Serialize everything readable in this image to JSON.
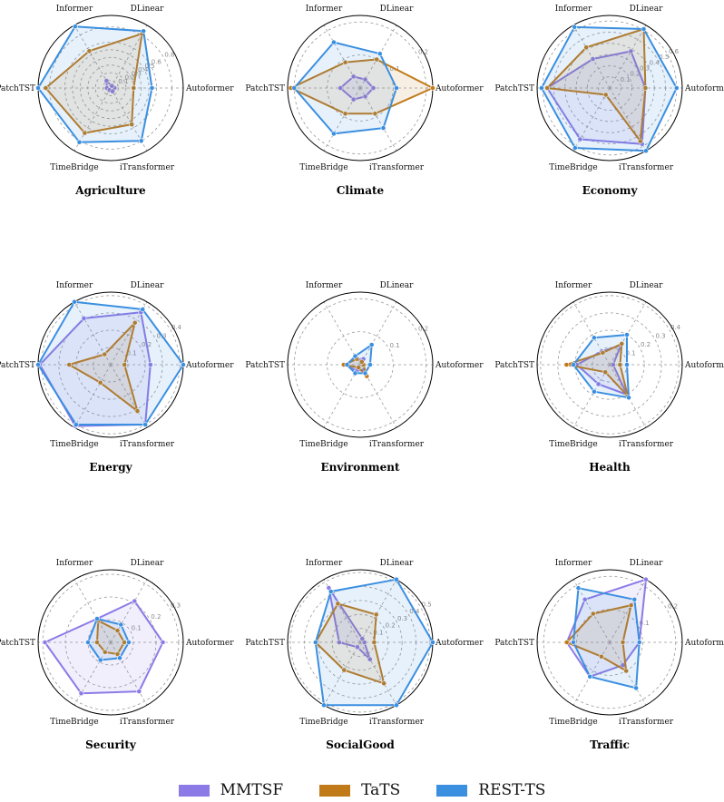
{
  "chart_data": {
    "type": "radar",
    "axes": [
      "Autoformer",
      "DLinear",
      "Informer",
      "PatchTST",
      "TimeBridge",
      "iTransformer"
    ],
    "series": [
      {
        "name": "MMTSF",
        "color": "#8c7ae6"
      },
      {
        "name": "TaTS",
        "color": "#c07a1a"
      },
      {
        "name": "REST-TS",
        "color": "#3b8fe0"
      }
    ],
    "panels": [
      {
        "title": "Agriculture",
        "rmax": 0.95,
        "ticks": [
          0.1,
          0.2,
          0.3,
          0.4,
          0.5,
          0.6,
          0.8
        ],
        "values": [
          [
            0.05,
            0.03,
            0.11,
            0.05,
            0.03,
            0.05
          ],
          [
            0.3,
            0.82,
            0.56,
            0.85,
            0.68,
            0.55
          ],
          [
            0.54,
            0.86,
            0.93,
            0.96,
            0.82,
            0.8
          ]
        ]
      },
      {
        "title": "Climate",
        "rmax": 0.22,
        "ticks": [
          0.1,
          0.2
        ],
        "values": [
          [
            0.04,
            0.03,
            0.04,
            0.06,
            0.04,
            0.03
          ],
          [
            0.22,
            0.1,
            0.09,
            0.21,
            0.09,
            0.09
          ],
          [
            0.11,
            0.12,
            0.16,
            0.2,
            0.16,
            0.14
          ]
        ]
      },
      {
        "title": "Economy",
        "rmax": 0.65,
        "ticks": [
          0.1,
          0.2,
          0.3,
          0.4,
          0.5,
          0.6
        ],
        "values": [
          [
            0.32,
            0.38,
            0.3,
            0.56,
            0.53,
            0.58
          ],
          [
            0.32,
            0.61,
            0.42,
            0.56,
            0.07,
            0.55
          ],
          [
            0.6,
            0.61,
            0.63,
            0.61,
            0.62,
            0.68
          ]
        ]
      },
      {
        "title": "Energy",
        "rmax": 0.42,
        "ticks": [
          0.1,
          0.2,
          0.3,
          0.4
        ],
        "values": [
          [
            0.23,
            0.35,
            0.31,
            0.41,
            0.41,
            0.4
          ],
          [
            0.08,
            0.28,
            0.07,
            0.24,
            0.12,
            0.31
          ],
          [
            0.42,
            0.37,
            0.44,
            0.42,
            0.4,
            0.4
          ]
        ]
      },
      {
        "title": "Environment",
        "rmax": 0.22,
        "ticks": [
          0.1,
          0.2
        ],
        "values": [
          [
            0.01,
            0.02,
            0.02,
            0.05,
            0.02,
            0.02
          ],
          [
            0.01,
            0.01,
            0.02,
            0.05,
            0.01,
            0.04
          ],
          [
            0.03,
            0.07,
            0.03,
            0.04,
            0.03,
            0.03
          ]
        ]
      },
      {
        "title": "Health",
        "rmax": 0.42,
        "ticks": [
          0.1,
          0.2,
          0.3,
          0.4
        ],
        "values": [
          [
            0.02,
            0.13,
            0.09,
            0.19,
            0.13,
            0.2
          ],
          [
            0.06,
            0.14,
            0.08,
            0.25,
            0.05,
            0.21
          ],
          [
            0.1,
            0.2,
            0.18,
            0.21,
            0.18,
            0.22
          ]
        ]
      },
      {
        "title": "Security",
        "rmax": 0.32,
        "ticks": [
          0.1,
          0.2,
          0.3
        ],
        "values": [
          [
            0.23,
            0.21,
            0.12,
            0.29,
            0.26,
            0.25
          ],
          [
            0.06,
            0.06,
            0.11,
            0.06,
            0.05,
            0.06
          ],
          [
            0.08,
            0.09,
            0.12,
            0.1,
            0.09,
            0.08
          ]
        ]
      },
      {
        "title": "SocialGood",
        "rmax": 0.52,
        "ticks": [
          0.1,
          0.2,
          0.3,
          0.4,
          0.5
        ],
        "values": [
          [
            0.03,
            0.03,
            0.45,
            0.15,
            0.04,
            0.14
          ],
          [
            0.1,
            0.23,
            0.32,
            0.32,
            0.23,
            0.34
          ],
          [
            0.55,
            0.55,
            0.42,
            0.32,
            0.56,
            0.56
          ]
        ]
      },
      {
        "title": "Traffic",
        "rmax": 0.22,
        "ticks": [
          0.1,
          0.2
        ],
        "values": [
          [
            0.09,
            0.22,
            0.15,
            0.13,
            0.12,
            0.08
          ],
          [
            0.04,
            0.13,
            0.1,
            0.13,
            0.05,
            0.1
          ],
          [
            0.09,
            0.15,
            0.19,
            0.11,
            0.12,
            0.16
          ]
        ]
      }
    ]
  },
  "legend": [
    "MMTSF",
    "TaTS",
    "REST-TS"
  ]
}
